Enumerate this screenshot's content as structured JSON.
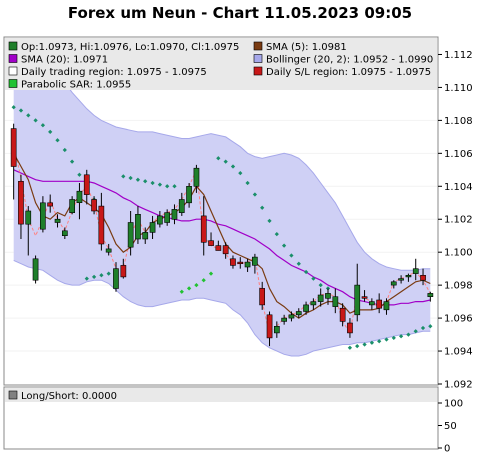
{
  "title": "Forex um Neun - Chart 11.05.2023 09:05",
  "colors": {
    "bollinger_fill": "#cfd0f5",
    "bollinger_line": "#a6a8ea",
    "sma5": "#7a3b12",
    "sma20": "#a100c8",
    "candle_up": "#1f7f2a",
    "candle_down": "#c81818",
    "sar": "#1a8f6a",
    "sar_green": "#22c232",
    "trading_line": "#ff8080",
    "legend_bg": "#e9e9e9"
  },
  "legend": [
    {
      "label": "Op:1.0973, Hi:1.0976, Lo:1.0970, Cl:1.0975",
      "color": "#1f7f2a",
      "icon": "green-square-icon"
    },
    {
      "label": "SMA (5): 1.0981",
      "color": "#7a3b12",
      "icon": "brown-square-icon"
    },
    {
      "label": "SMA (20): 1.0971",
      "color": "#a100c8",
      "icon": "purple-square-icon"
    },
    {
      "label": "Bollinger (20, 2): 1.0952 - 1.0990",
      "color": "#a6a8ea",
      "icon": "lavender-square-icon"
    },
    {
      "label": "Daily trading region: 1.0975 - 1.0975",
      "color": "#ffffff",
      "icon": "white-square-icon"
    },
    {
      "label": "Daily S/L region: 1.0975 - 1.0975",
      "color": "#c81818",
      "icon": "red-square-icon"
    },
    {
      "label": "Parabolic SAR: 1.0955",
      "color": "#22c232",
      "icon": "light-green-square-icon"
    }
  ],
  "lower_panel": {
    "legend_label": "Long/Short: 0.0000",
    "yticks": [
      "100",
      "50",
      "0"
    ]
  },
  "chart_data": {
    "type": "candlestick",
    "ylim": [
      1.092,
      1.113
    ],
    "yticks": [
      "1.092",
      "1.094",
      "1.096",
      "1.098",
      "1.100",
      "1.102",
      "1.104",
      "1.106",
      "1.108",
      "1.110",
      "1.112"
    ],
    "candles": [
      {
        "o": 1.1075,
        "h": 1.1078,
        "l": 1.1032,
        "c": 1.1052
      },
      {
        "o": 1.1043,
        "h": 1.1047,
        "l": 1.1008,
        "c": 1.1017
      },
      {
        "o": 1.1017,
        "h": 1.1028,
        "l": 1.0998,
        "c": 1.1025
      },
      {
        "o": 1.0983,
        "h": 1.0998,
        "l": 1.0981,
        "c": 1.0996
      },
      {
        "o": 1.1014,
        "h": 1.1034,
        "l": 1.1012,
        "c": 1.103
      },
      {
        "o": 1.103,
        "h": 1.1035,
        "l": 1.1024,
        "c": 1.1028
      },
      {
        "o": 1.1018,
        "h": 1.1023,
        "l": 1.1015,
        "c": 1.102
      },
      {
        "o": 1.101,
        "h": 1.1015,
        "l": 1.1008,
        "c": 1.1013
      },
      {
        "o": 1.1024,
        "h": 1.1034,
        "l": 1.1023,
        "c": 1.1032
      },
      {
        "o": 1.103,
        "h": 1.1042,
        "l": 1.102,
        "c": 1.1037
      },
      {
        "o": 1.1047,
        "h": 1.105,
        "l": 1.1029,
        "c": 1.1035
      },
      {
        "o": 1.1032,
        "h": 1.1034,
        "l": 1.1023,
        "c": 1.1025
      },
      {
        "o": 1.1028,
        "h": 1.1036,
        "l": 1.1001,
        "c": 1.1005
      },
      {
        "o": 1.1,
        "h": 1.1005,
        "l": 1.0998,
        "c": 1.1002
      },
      {
        "o": 1.0978,
        "h": 1.0994,
        "l": 1.0976,
        "c": 1.099
      },
      {
        "o": 1.0992,
        "h": 1.0996,
        "l": 1.0984,
        "c": 1.0985
      },
      {
        "o": 1.1003,
        "h": 1.1025,
        "l": 1.0998,
        "c": 1.1018
      },
      {
        "o": 1.1008,
        "h": 1.1028,
        "l": 1.1005,
        "c": 1.1023
      },
      {
        "o": 1.1008,
        "h": 1.1015,
        "l": 1.1005,
        "c": 1.1012
      },
      {
        "o": 1.1012,
        "h": 1.1022,
        "l": 1.1008,
        "c": 1.1018
      },
      {
        "o": 1.1017,
        "h": 1.1025,
        "l": 1.1015,
        "c": 1.1022
      },
      {
        "o": 1.1018,
        "h": 1.1026,
        "l": 1.1016,
        "c": 1.1024
      },
      {
        "o": 1.102,
        "h": 1.1029,
        "l": 1.1017,
        "c": 1.1026
      },
      {
        "o": 1.1024,
        "h": 1.1036,
        "l": 1.1022,
        "c": 1.1032
      },
      {
        "o": 1.103,
        "h": 1.1042,
        "l": 1.1027,
        "c": 1.104
      },
      {
        "o": 1.104,
        "h": 1.1053,
        "l": 1.1036,
        "c": 1.1051
      },
      {
        "o": 1.1022,
        "h": 1.1034,
        "l": 1.0998,
        "c": 1.1006
      },
      {
        "o": 1.1007,
        "h": 1.1012,
        "l": 1.1004,
        "c": 1.1004
      },
      {
        "o": 1.1004,
        "h": 1.1007,
        "l": 1.1001,
        "c": 1.1001
      },
      {
        "o": 1.1004,
        "h": 1.1006,
        "l": 1.0996,
        "c": 1.0999
      },
      {
        "o": 1.0996,
        "h": 1.0998,
        "l": 1.099,
        "c": 1.0992
      },
      {
        "o": 1.0994,
        "h": 1.0997,
        "l": 1.099,
        "c": 1.0993
      },
      {
        "o": 1.0991,
        "h": 1.0996,
        "l": 1.0988,
        "c": 1.0994
      },
      {
        "o": 1.0992,
        "h": 1.0999,
        "l": 1.0987,
        "c": 1.0997
      },
      {
        "o": 1.0978,
        "h": 1.0982,
        "l": 1.0965,
        "c": 1.0968
      },
      {
        "o": 1.0962,
        "h": 1.0964,
        "l": 1.0943,
        "c": 1.0948
      },
      {
        "o": 1.0951,
        "h": 1.0958,
        "l": 1.0948,
        "c": 1.0955
      },
      {
        "o": 1.0958,
        "h": 1.0962,
        "l": 1.0956,
        "c": 1.096
      },
      {
        "o": 1.096,
        "h": 1.0964,
        "l": 1.0958,
        "c": 1.0962
      },
      {
        "o": 1.0962,
        "h": 1.0966,
        "l": 1.096,
        "c": 1.0964
      },
      {
        "o": 1.0964,
        "h": 1.097,
        "l": 1.0962,
        "c": 1.0968
      },
      {
        "o": 1.0968,
        "h": 1.0972,
        "l": 1.0965,
        "c": 1.097
      },
      {
        "o": 1.097,
        "h": 1.0978,
        "l": 1.0967,
        "c": 1.0974
      },
      {
        "o": 1.0972,
        "h": 1.0978,
        "l": 1.0968,
        "c": 1.0975
      },
      {
        "o": 1.0967,
        "h": 1.0978,
        "l": 1.0963,
        "c": 1.0973
      },
      {
        "o": 1.0966,
        "h": 1.0969,
        "l": 1.0955,
        "c": 1.0958
      },
      {
        "o": 1.0957,
        "h": 1.096,
        "l": 1.0948,
        "c": 1.0951
      },
      {
        "o": 1.0962,
        "h": 1.0993,
        "l": 1.0958,
        "c": 1.098
      },
      {
        "o": 1.0973,
        "h": 1.0977,
        "l": 1.097,
        "c": 1.0972
      },
      {
        "o": 1.0968,
        "h": 1.0972,
        "l": 1.0965,
        "c": 1.097
      },
      {
        "o": 1.0971,
        "h": 1.0975,
        "l": 1.0963,
        "c": 1.0966
      },
      {
        "o": 1.0965,
        "h": 1.0972,
        "l": 1.0962,
        "c": 1.097
      },
      {
        "o": 1.098,
        "h": 1.0983,
        "l": 1.0978,
        "c": 1.0982
      },
      {
        "o": 1.0983,
        "h": 1.0986,
        "l": 1.0981,
        "c": 1.0984
      },
      {
        "o": 1.0985,
        "h": 1.0987,
        "l": 1.0982,
        "c": 1.0986
      },
      {
        "o": 1.0987,
        "h": 1.0996,
        "l": 1.0983,
        "c": 1.099
      },
      {
        "o": 1.0986,
        "h": 1.099,
        "l": 1.098,
        "c": 1.0983
      },
      {
        "o": 1.0973,
        "h": 1.0976,
        "l": 1.097,
        "c": 1.0975
      }
    ],
    "sma5": [
      1.106,
      1.1052,
      1.1044,
      1.103,
      1.1022,
      1.102,
      1.1024,
      1.1022,
      1.103,
      1.1033,
      1.103,
      1.1027,
      1.1023,
      1.1015,
      1.1005,
      1.1,
      1.1003,
      1.101,
      1.1012,
      1.1018,
      1.102,
      1.1022,
      1.1024,
      1.1027,
      1.1032,
      1.104,
      1.1035,
      1.1025,
      1.1015,
      1.1005,
      1.1,
      1.0998,
      1.0996,
      1.0994,
      1.099,
      1.0978,
      1.097,
      1.0967,
      1.0963,
      1.096,
      1.0963,
      1.0965,
      1.0968,
      1.097,
      1.097,
      1.0968,
      1.0963,
      1.0965,
      1.0965,
      1.0965,
      1.0966,
      1.097,
      1.0973,
      1.0976,
      1.0979,
      1.0982,
      1.0983,
      1.0981
    ],
    "sma20": [
      1.105,
      1.1048,
      1.1046,
      1.1044,
      1.1043,
      1.1043,
      1.1043,
      1.1043,
      1.1043,
      1.1043,
      1.1043,
      1.1042,
      1.104,
      1.1038,
      1.1036,
      1.1033,
      1.1031,
      1.1028,
      1.1026,
      1.1024,
      1.1022,
      1.1021,
      1.102,
      1.1019,
      1.1019,
      1.102,
      1.102,
      1.1019,
      1.1017,
      1.1016,
      1.1014,
      1.1012,
      1.101,
      1.1008,
      1.1005,
      1.1002,
      1.0998,
      1.0995,
      1.0992,
      1.099,
      1.0988,
      1.0985,
      1.0983,
      1.098,
      1.0978,
      1.0976,
      1.0973,
      1.0971,
      1.097,
      1.0969,
      1.0968,
      1.0968,
      1.0968,
      1.0969,
      1.0969,
      1.097,
      1.097,
      1.0971
    ],
    "bollinger_upper": [
      1.112,
      1.112,
      1.112,
      1.1119,
      1.1116,
      1.1112,
      1.1108,
      1.1103,
      1.1097,
      1.1092,
      1.1087,
      1.1083,
      1.108,
      1.1078,
      1.1076,
      1.1075,
      1.1074,
      1.1073,
      1.1073,
      1.1073,
      1.1072,
      1.1071,
      1.107,
      1.1069,
      1.1069,
      1.107,
      1.1071,
      1.1072,
      1.1071,
      1.107,
      1.1067,
      1.1064,
      1.106,
      1.1058,
      1.1057,
      1.1058,
      1.1059,
      1.106,
      1.1059,
      1.1057,
      1.1053,
      1.1048,
      1.1042,
      1.1036,
      1.103,
      1.1022,
      1.1014,
      1.1006,
      1.1,
      1.0996,
      1.0993,
      1.0991,
      1.099,
      1.0989,
      1.0989,
      1.0989,
      1.099,
      1.099
    ],
    "bollinger_lower": [
      1.0995,
      1.0993,
      1.0991,
      1.099,
      1.0989,
      1.0986,
      1.0983,
      1.0981,
      1.098,
      1.098,
      1.0982,
      1.0983,
      1.0983,
      1.0981,
      1.0977,
      1.0973,
      1.097,
      1.0968,
      1.0967,
      1.0967,
      1.0968,
      1.0969,
      1.097,
      1.0971,
      1.0971,
      1.0972,
      1.0972,
      1.0971,
      1.097,
      1.0969,
      1.0965,
      1.0962,
      1.0957,
      1.095,
      1.0945,
      1.0942,
      1.094,
      1.0938,
      1.0937,
      1.0937,
      1.0938,
      1.094,
      1.0941,
      1.0942,
      1.0943,
      1.0944,
      1.0944,
      1.0945,
      1.0945,
      1.0946,
      1.0947,
      1.0948,
      1.0949,
      1.095,
      1.095,
      1.0951,
      1.0952,
      1.0952
    ],
    "trading_line": [
      1.1065,
      1.1045,
      1.102,
      1.101,
      1.102,
      1.1032,
      1.102,
      1.1013,
      1.1025,
      1.1035,
      1.104,
      1.103,
      1.101,
      1.1002,
      1.099,
      1.099,
      1.101,
      1.102,
      1.1012,
      1.1018,
      1.1022,
      1.1024,
      1.1026,
      1.1032,
      1.104,
      1.105,
      1.101,
      1.1004,
      1.1002,
      1.0999,
      1.0993,
      1.0993,
      1.0994,
      1.0997,
      1.097,
      1.095,
      1.0955,
      1.096,
      1.0962,
      1.0964,
      1.0968,
      1.097,
      1.0974,
      1.0975,
      1.0973,
      1.0958,
      1.0951,
      1.0975,
      1.0972,
      1.097,
      1.0966,
      1.097,
      1.0982,
      1.0984,
      1.0986,
      1.0988,
      1.0983,
      1.0975
    ],
    "parabolic_sar": [
      {
        "i": 0,
        "v": 1.1088
      },
      {
        "i": 1,
        "v": 1.1086
      },
      {
        "i": 2,
        "v": 1.1083
      },
      {
        "i": 3,
        "v": 1.108
      },
      {
        "i": 4,
        "v": 1.1077
      },
      {
        "i": 5,
        "v": 1.1073
      },
      {
        "i": 6,
        "v": 1.1068
      },
      {
        "i": 7,
        "v": 1.1062
      },
      {
        "i": 8,
        "v": 1.1055
      },
      {
        "i": 9,
        "v": 1.1047
      },
      {
        "i": 10,
        "v": 1.104
      },
      {
        "i": 11,
        "v": 1.1032
      },
      {
        "i": 10,
        "v": 1.0984
      },
      {
        "i": 11,
        "v": 1.0985
      },
      {
        "i": 12,
        "v": 1.0986
      },
      {
        "i": 13,
        "v": 1.0987
      },
      {
        "i": 14,
        "v": 1.0988
      },
      {
        "i": 15,
        "v": 1.1046
      },
      {
        "i": 16,
        "v": 1.1045
      },
      {
        "i": 17,
        "v": 1.1044
      },
      {
        "i": 18,
        "v": 1.1043
      },
      {
        "i": 19,
        "v": 1.1042
      },
      {
        "i": 20,
        "v": 1.1041
      },
      {
        "i": 21,
        "v": 1.104
      },
      {
        "i": 22,
        "v": 1.104
      },
      {
        "i": 23,
        "v": 1.0976
      },
      {
        "i": 24,
        "v": 1.0978
      },
      {
        "i": 25,
        "v": 1.098
      },
      {
        "i": 26,
        "v": 1.0983
      },
      {
        "i": 27,
        "v": 1.0987
      },
      {
        "i": 28,
        "v": 1.1057
      },
      {
        "i": 29,
        "v": 1.1055
      },
      {
        "i": 30,
        "v": 1.1052
      },
      {
        "i": 31,
        "v": 1.1048
      },
      {
        "i": 32,
        "v": 1.1042
      },
      {
        "i": 33,
        "v": 1.1035
      },
      {
        "i": 34,
        "v": 1.1027
      },
      {
        "i": 35,
        "v": 1.1019
      },
      {
        "i": 36,
        "v": 1.1011
      },
      {
        "i": 37,
        "v": 1.1004
      },
      {
        "i": 38,
        "v": 1.0998
      },
      {
        "i": 39,
        "v": 1.0993
      },
      {
        "i": 40,
        "v": 1.0988
      },
      {
        "i": 41,
        "v": 1.0984
      },
      {
        "i": 42,
        "v": 1.098
      },
      {
        "i": 43,
        "v": 1.0978
      },
      {
        "i": 46,
        "v": 1.0942
      },
      {
        "i": 47,
        "v": 1.0943
      },
      {
        "i": 48,
        "v": 1.0944
      },
      {
        "i": 49,
        "v": 1.0945
      },
      {
        "i": 50,
        "v": 1.0946
      },
      {
        "i": 51,
        "v": 1.0947
      },
      {
        "i": 52,
        "v": 1.0948
      },
      {
        "i": 53,
        "v": 1.0949
      },
      {
        "i": 54,
        "v": 1.095
      },
      {
        "i": 55,
        "v": 1.0952
      },
      {
        "i": 56,
        "v": 1.0954
      },
      {
        "i": 57,
        "v": 1.0955
      }
    ]
  }
}
